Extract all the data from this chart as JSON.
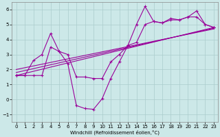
{
  "xlabel": "Windchill (Refroidissement éolien,°C)",
  "bg_color": "#cce8e8",
  "grid_color": "#aacccc",
  "line_color": "#990099",
  "xlim": [
    -0.5,
    23.5
  ],
  "ylim": [
    -1.5,
    6.5
  ],
  "xticks": [
    0,
    1,
    2,
    3,
    4,
    5,
    6,
    7,
    8,
    9,
    10,
    11,
    12,
    13,
    14,
    15,
    16,
    17,
    18,
    19,
    20,
    21,
    22,
    23
  ],
  "yticks": [
    -1,
    0,
    1,
    2,
    3,
    4,
    5,
    6
  ],
  "line1_x": [
    0,
    1,
    2,
    3,
    4,
    5,
    6,
    7,
    8,
    9,
    10,
    11,
    12,
    13,
    14,
    15,
    16,
    17,
    18,
    19,
    20,
    21,
    22,
    23
  ],
  "line1_y": [
    1.6,
    1.6,
    2.6,
    3.0,
    4.4,
    3.2,
    2.4,
    -0.4,
    -0.6,
    -0.65,
    0.05,
    1.4,
    2.5,
    3.6,
    5.0,
    6.2,
    5.2,
    5.1,
    5.4,
    5.3,
    5.5,
    5.9,
    5.0,
    4.8
  ],
  "line2_x": [
    0,
    1,
    2,
    3,
    4,
    5,
    6,
    7,
    8,
    9,
    10,
    11,
    12,
    13,
    14,
    15,
    16,
    17,
    18,
    19,
    20,
    21,
    22,
    23
  ],
  "line2_y": [
    1.6,
    1.6,
    1.6,
    1.6,
    3.5,
    3.2,
    3.0,
    1.5,
    1.5,
    1.4,
    1.4,
    2.5,
    3.0,
    3.6,
    3.8,
    5.0,
    5.2,
    5.1,
    5.3,
    5.3,
    5.5,
    5.5,
    5.0,
    4.8
  ],
  "line3_x": [
    0,
    23
  ],
  "line3_y": [
    1.6,
    4.8
  ],
  "line4_x": [
    0,
    23
  ],
  "line4_y": [
    1.8,
    4.75
  ],
  "line5_x": [
    0,
    23
  ],
  "line5_y": [
    2.0,
    4.7
  ]
}
